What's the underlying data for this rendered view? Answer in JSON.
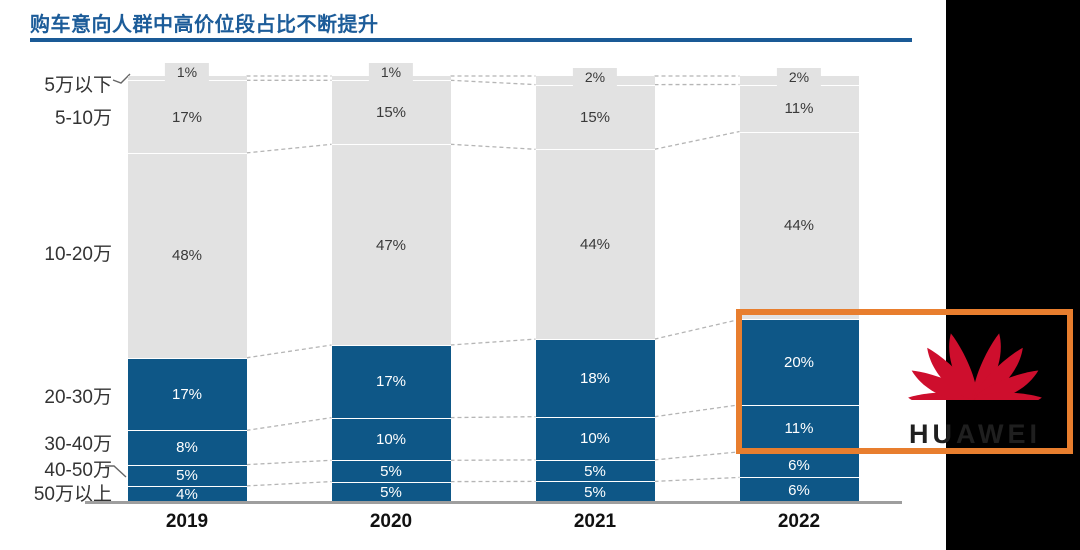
{
  "title": "购车意向人群中高价位段占比不断提升",
  "chart_data": {
    "type": "bar",
    "stacked": true,
    "unit": "%",
    "title": "购车意向人群中高价位段占比不断提升",
    "categories": [
      "2019",
      "2020",
      "2021",
      "2022"
    ],
    "series": [
      {
        "name": "5万以下",
        "values": [
          1,
          1,
          2,
          2
        ],
        "color": "#E2E2E2",
        "label_color": "#3A3A3A"
      },
      {
        "name": "5-10万",
        "values": [
          17,
          15,
          15,
          11
        ],
        "color": "#E2E2E2",
        "label_color": "#3A3A3A"
      },
      {
        "name": "10-20万",
        "values": [
          48,
          47,
          44,
          44
        ],
        "color": "#E2E2E2",
        "label_color": "#3A3A3A"
      },
      {
        "name": "20-30万",
        "values": [
          17,
          17,
          18,
          20
        ],
        "color": "#0E5787",
        "label_color": "#FFFFFF"
      },
      {
        "name": "30-40万",
        "values": [
          8,
          10,
          10,
          11
        ],
        "color": "#0E5787",
        "label_color": "#FFFFFF"
      },
      {
        "name": "40-50万",
        "values": [
          5,
          5,
          5,
          6
        ],
        "color": "#0E5787",
        "label_color": "#FFFFFF"
      },
      {
        "name": "50万以上",
        "values": [
          4,
          5,
          5,
          6
        ],
        "color": "#0E5787",
        "label_color": "#FFFFFF"
      }
    ],
    "ylim": [
      0,
      100
    ],
    "grid": false,
    "legend_position": "left-category-labels",
    "connector_lines": "dashed between adjacent bars at segment boundaries"
  },
  "highlight": {
    "year": "2022",
    "series": [
      "20-30万",
      "30-40万"
    ],
    "color": "#E87E2E"
  },
  "logo": {
    "brand": "HUAWEI",
    "icon": "huawei-flower-icon",
    "flower_color": "#CE0E2D",
    "text_color": "#1F1F1F"
  },
  "colors": {
    "title_blue": "#1C5C99",
    "bar_blue": "#0E5787",
    "bar_gray": "#E2E2E2",
    "axis_gray": "#9E9E9E",
    "dash_gray": "#B5B5B5",
    "black_band": "#000000"
  }
}
